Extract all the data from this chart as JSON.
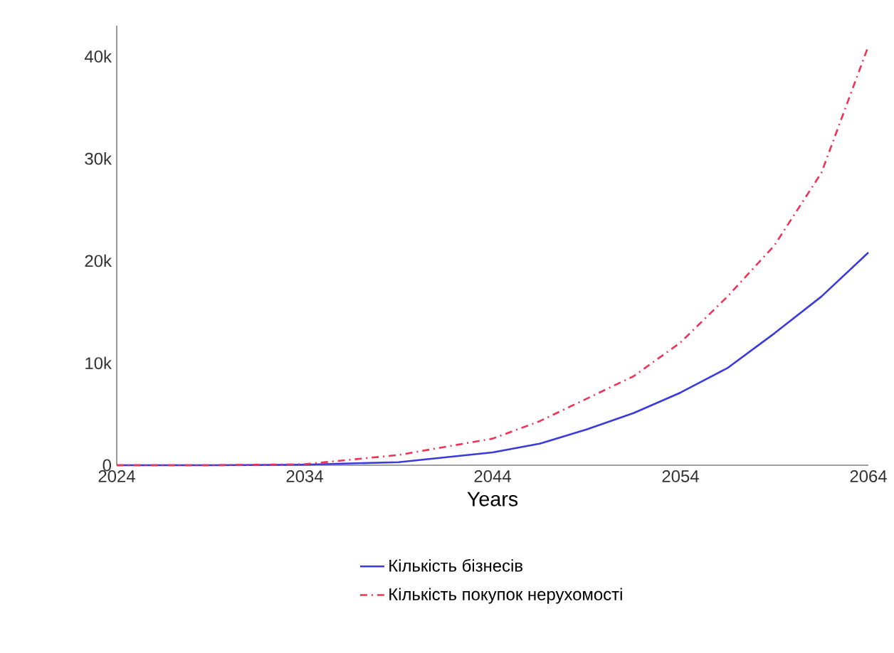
{
  "chart_data": {
    "type": "line",
    "xlabel": "Years",
    "x": [
      2024,
      2029,
      2034,
      2039,
      2044,
      2046.5,
      2049,
      2051.5,
      2054,
      2056.5,
      2059,
      2061.5,
      2064
    ],
    "series": [
      {
        "name": "Кількість бізнесів",
        "color": "#3a3adf",
        "line_style": "solid",
        "values": [
          0,
          0,
          50,
          300,
          1250,
          2100,
          3500,
          5100,
          7100,
          9500,
          12900,
          16500,
          20800
        ]
      },
      {
        "name": "Кількість покупок нерухомості",
        "color": "#ee3355",
        "line_style": "dashed",
        "values": [
          0,
          0,
          100,
          1000,
          2600,
          4300,
          6500,
          8700,
          12000,
          16500,
          21500,
          28600,
          41000
        ]
      }
    ],
    "xlim": [
      2024,
      2064
    ],
    "xticks": [
      2024,
      2034,
      2044,
      2054,
      2064
    ],
    "ylim": [
      0,
      43000
    ],
    "yticks": [
      {
        "value": 0,
        "label": "0"
      },
      {
        "value": 10000,
        "label": "10k"
      },
      {
        "value": 20000,
        "label": "20k"
      },
      {
        "value": 30000,
        "label": "30k"
      },
      {
        "value": 40000,
        "label": "40k"
      }
    ],
    "grid": false,
    "legend": "bottom",
    "marker": "none"
  }
}
